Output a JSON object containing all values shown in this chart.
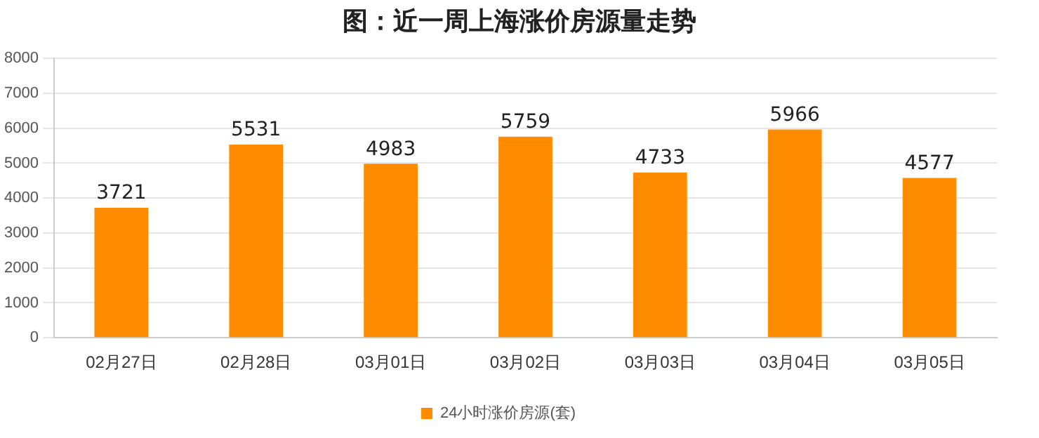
{
  "chart_data": {
    "type": "bar",
    "title": "图：近一周上海涨价房源量走势",
    "categories": [
      "02月27日",
      "02月28日",
      "03月01日",
      "03月02日",
      "03月03日",
      "03月04日",
      "03月05日"
    ],
    "series": [
      {
        "name": "24小时涨价房源(套)",
        "color": "#ff8c00",
        "values": [
          3721,
          5531,
          4983,
          5759,
          4733,
          5966,
          4577
        ]
      }
    ],
    "ylim": [
      0,
      8000
    ],
    "yticks": [
      0,
      1000,
      2000,
      3000,
      4000,
      5000,
      6000,
      7000,
      8000
    ],
    "grid": "y",
    "legend": "bottom",
    "data_labels": true
  }
}
